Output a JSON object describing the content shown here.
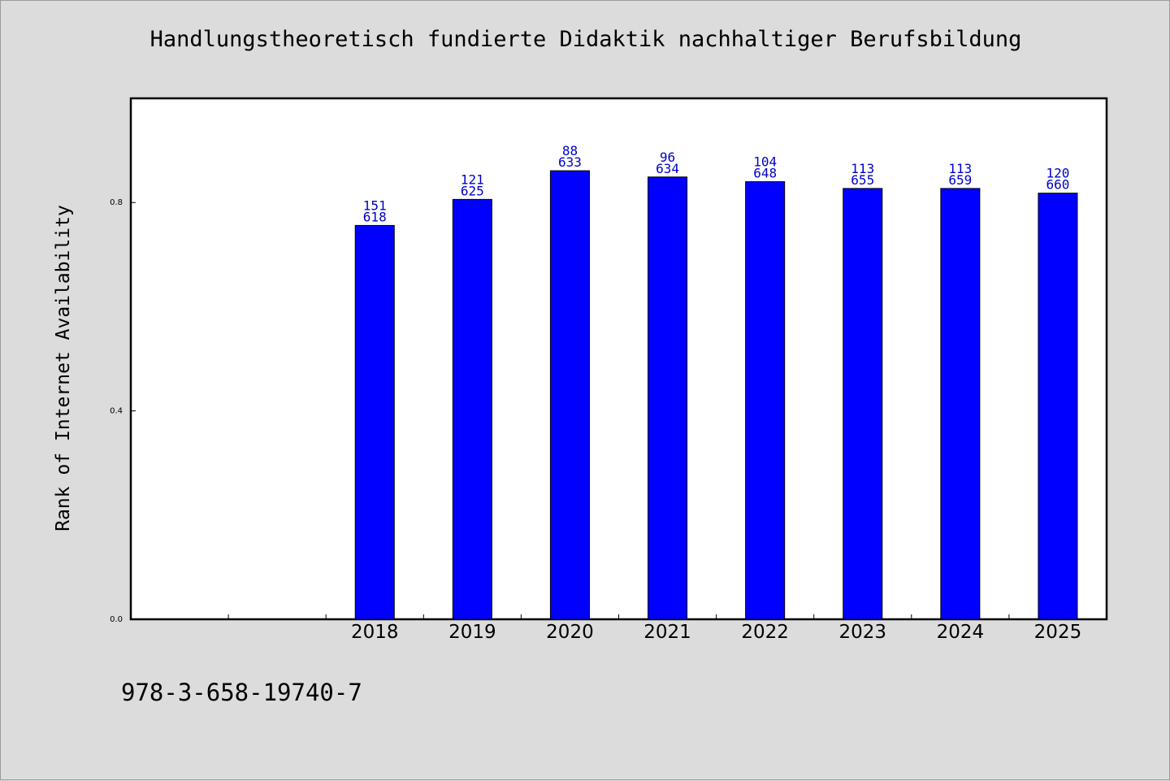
{
  "chart_data": {
    "type": "bar",
    "title": "Handlungstheoretisch fundierte Didaktik nachhaltiger Berufsbildung",
    "ylabel": "Rank of Internet Availability",
    "xlabel": "",
    "categories": [
      "",
      "",
      "2018",
      "2019",
      "2020",
      "2021",
      "2022",
      "2023",
      "2024",
      "2025"
    ],
    "values": [
      null,
      null,
      0.756,
      0.806,
      0.861,
      0.849,
      0.84,
      0.827,
      0.827,
      0.818
    ],
    "labels_top": [
      "",
      "",
      "151",
      "121",
      "88",
      "96",
      "104",
      "113",
      "113",
      "120"
    ],
    "labels_bottom": [
      "",
      "",
      "618",
      "625",
      "633",
      "634",
      "648",
      "655",
      "659",
      "660"
    ],
    "ylim": [
      0,
      1.0
    ],
    "yticks": [
      0.0,
      0.4,
      0.8
    ],
    "ytick_labels": [
      "0.0",
      "0.4",
      "0.8"
    ],
    "bar_color": "#0000ff",
    "label_color": "#0000cc",
    "grid": false,
    "legend": "none"
  },
  "footer": {
    "isbn": "978-3-658-19740-7"
  }
}
